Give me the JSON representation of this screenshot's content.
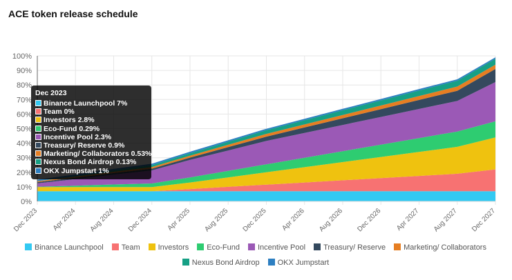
{
  "title": "ACE token release schedule",
  "chart_data": {
    "type": "area",
    "stacked": true,
    "title": "ACE token release schedule",
    "x": [
      "Dec 2023",
      "Apr 2024",
      "Aug 2024",
      "Dec 2024",
      "Apr 2025",
      "Aug 2025",
      "Dec 2025",
      "Apr 2026",
      "Aug 2026",
      "Dec 2026",
      "Apr 2027",
      "Aug 2027",
      "Dec 2027"
    ],
    "y_ticks": [
      "0%",
      "10%",
      "20%",
      "30%",
      "40%",
      "50%",
      "60%",
      "70%",
      "80%",
      "90%",
      "100%"
    ],
    "ylim": [
      0,
      100
    ],
    "legend_position": "bottom",
    "series": [
      {
        "name": "Binance Launchpool",
        "color": "#33c9f2",
        "values": [
          7,
          7,
          7,
          7,
          7,
          7,
          7,
          7,
          7,
          7,
          7,
          7,
          7
        ]
      },
      {
        "name": "Team",
        "color": "#f77272",
        "values": [
          0,
          0,
          0,
          0,
          1.5,
          3,
          4.5,
          6,
          7.5,
          9,
          10.5,
          12,
          15
        ]
      },
      {
        "name": "Investors",
        "color": "#efc20f",
        "values": [
          2.8,
          2.8,
          2.8,
          2.8,
          4.5,
          6.5,
          8.5,
          10.5,
          12.5,
          14.5,
          16.5,
          18.5,
          22
        ]
      },
      {
        "name": "Eco-Fund",
        "color": "#2ecc71",
        "values": [
          0.29,
          1,
          1.8,
          2.5,
          3.5,
          4.5,
          5.5,
          6.5,
          7.5,
          8.5,
          9.5,
          10.5,
          11
        ]
      },
      {
        "name": "Incentive Pool",
        "color": "#9b59b6",
        "values": [
          2.3,
          4.5,
          6.8,
          9,
          12,
          14,
          16,
          17,
          18,
          19,
          20,
          21,
          27
        ]
      },
      {
        "name": "Treasury/ Reserve",
        "color": "#34495e",
        "values": [
          0.9,
          1,
          1.1,
          1.2,
          1.6,
          2.3,
          3,
          3.8,
          4.6,
          5.4,
          6.2,
          7,
          9
        ]
      },
      {
        "name": "Marketing/ Collaborators",
        "color": "#e67e22",
        "values": [
          0.53,
          0.7,
          0.9,
          1.1,
          1.3,
          1.6,
          1.9,
          2.1,
          2.3,
          2.5,
          2.7,
          2.9,
          3
        ]
      },
      {
        "name": "Nexus Bond Airdrop",
        "color": "#16a085",
        "values": [
          0.13,
          0.5,
          0.9,
          1.3,
          1.7,
          2.1,
          2.5,
          2.9,
          3.2,
          3.5,
          3.8,
          4,
          4
        ]
      },
      {
        "name": "OKX Jumpstart",
        "color": "#2d7fc1",
        "values": [
          1,
          1,
          1,
          1,
          1,
          1,
          1,
          1,
          1,
          1,
          1,
          1,
          1
        ]
      }
    ],
    "tooltip": {
      "title": "Dec 2023",
      "items": [
        "Binance Launchpool 7%",
        "Team 0%",
        "Investors 2.8%",
        "Eco-Fund 0.29%",
        "Incentive Pool 2.3%",
        "Treasury/ Reserve 0.9%",
        "Marketing/ Collaborators 0.53%",
        "Nexus Bond Airdrop 0.13%",
        "OKX Jumpstart 1%"
      ]
    }
  }
}
